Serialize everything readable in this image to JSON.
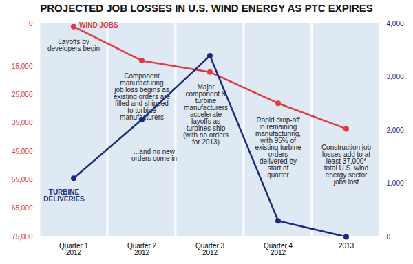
{
  "chart_data": {
    "type": "line",
    "title": "PROJECTED JOB LOSSES IN U.S. WIND ENERGY AS PTC EXPIRES",
    "categories": [
      "Quarter 1\n2012",
      "Quarter 2\n2012",
      "Quarter 3\n2012",
      "Quarter 4\n2012",
      "2013"
    ],
    "series": [
      {
        "name": "WIND JOBS",
        "color": "#e0393e",
        "marker": "circle",
        "values": [
          1000,
          13000,
          17000,
          28000,
          37000
        ]
      },
      {
        "name": "TURBINE DELIVERIES",
        "color": "#1b2a80",
        "marker": "circle",
        "axis": "y2",
        "values": [
          1100,
          2200,
          3400,
          300,
          0
        ]
      }
    ],
    "ylim": [
      75000,
      0
    ],
    "yticks": [
      0,
      {
        "value": 15000,
        "label": "15,000"
      },
      {
        "value": 25000,
        "label": "25,000"
      },
      {
        "value": 35000,
        "label": "35,000"
      },
      {
        "value": 45000,
        "label": "45,000"
      },
      {
        "value": 55000,
        "label": "55,000"
      },
      {
        "value": 65000,
        "label": "65,000"
      },
      {
        "value": 75000,
        "label": "75,000"
      }
    ],
    "y2lim": [
      0,
      4000
    ],
    "y2ticks": [
      0,
      {
        "value": 1000,
        "label": "1,000"
      },
      {
        "value": 2000,
        "label": "2,000"
      },
      {
        "value": 3000,
        "label": "3,000"
      },
      {
        "value": 4000,
        "label": "4,000"
      }
    ],
    "annotations": [
      {
        "category": "Quarter 1\n2012",
        "text": "Layoffs by\ndevelopers begin"
      },
      {
        "category": "Quarter 2\n2012",
        "text": "Component\nmanufacturing\njob loss begins as\nexisting orders are\nfilled and shipped\nto turbine\nmanufacturers"
      },
      {
        "category": "Quarter 2\n2012",
        "text": "...and no new\norders come in"
      },
      {
        "category": "Quarter 3\n2012",
        "text": "Major\ncomponent &\nturbine\nmanufacturers\naccelerate\nlayoffs as\nturbines ship\n(with no orders\nfor 2013)"
      },
      {
        "category": "Quarter 4\n2012",
        "text": "Rapid drop-off\nin remaining\nmanufacturing,\nwith 95% of\nexisting turbine\norders\ndelivered by\nstart of\nquarter"
      },
      {
        "category": "2013",
        "text": "Construction job\nlosses add to at\nleast 37,000*\ntotal U.S. wind\nenergy sector\njobs lost"
      }
    ]
  }
}
